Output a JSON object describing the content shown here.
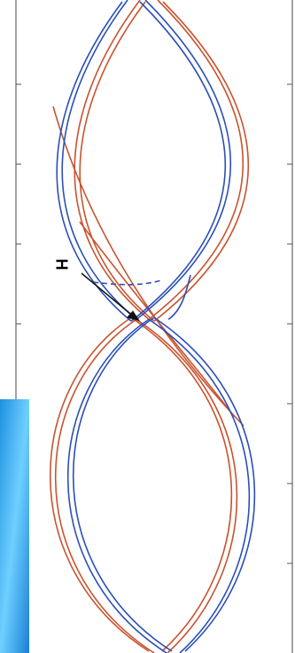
{
  "annotation": "H"
}
